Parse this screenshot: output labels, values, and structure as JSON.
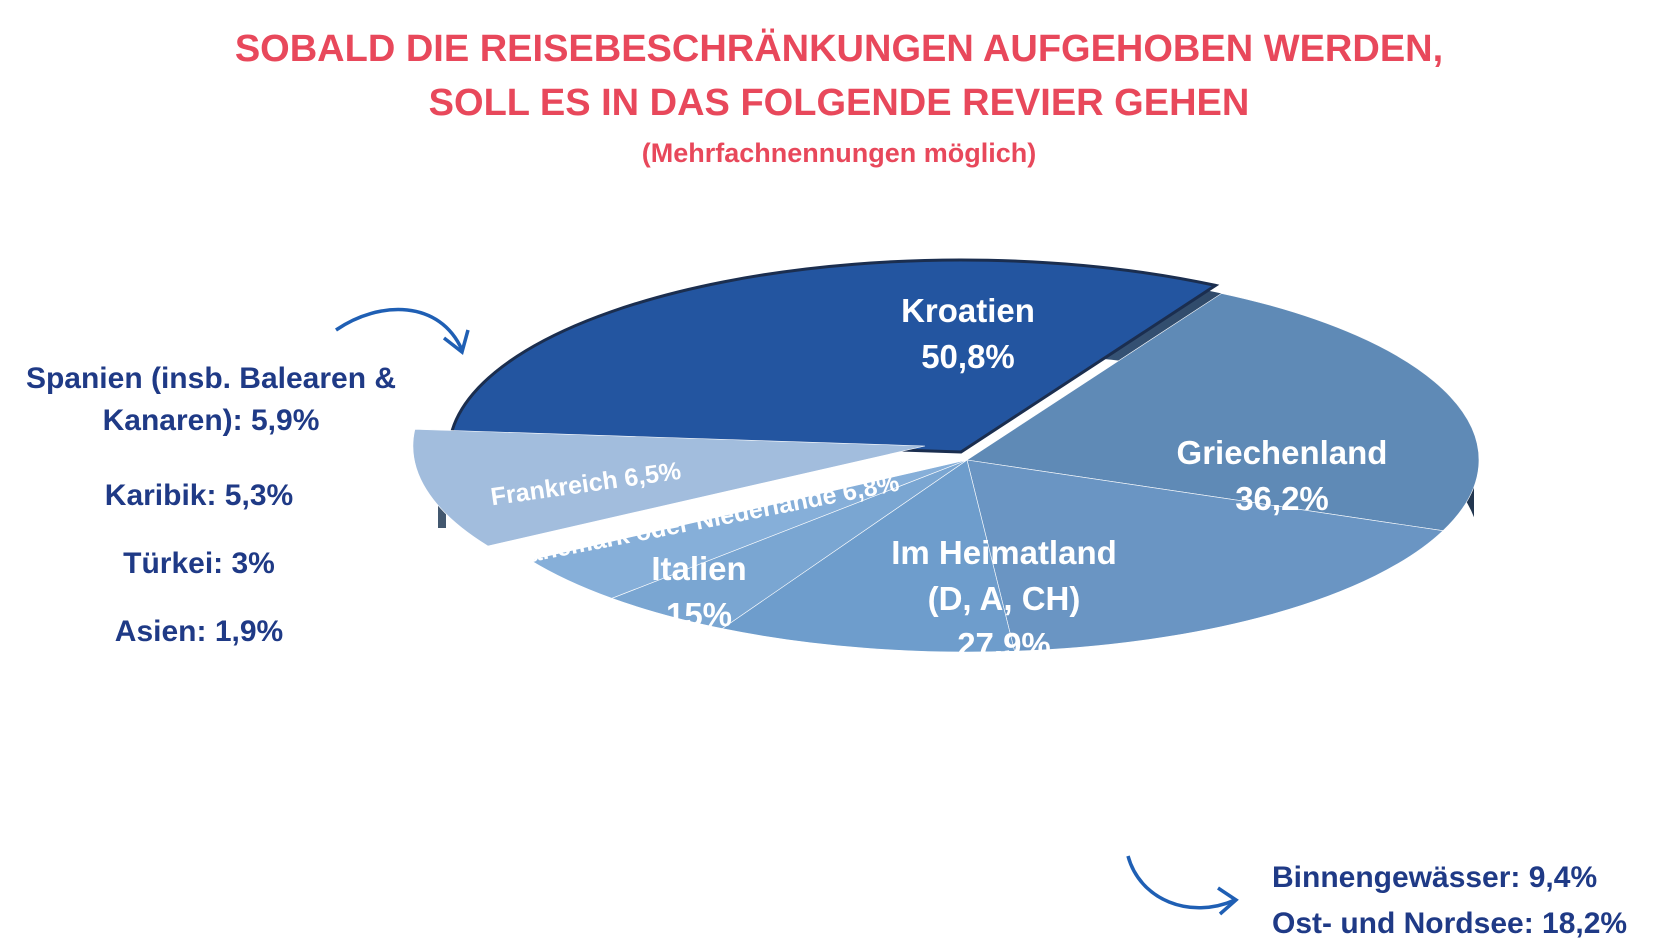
{
  "title": {
    "line1": "SOBALD DIE REISEBESCHRÄNKUNGEN AUFGEHOBEN WERDEN,",
    "line2": "SOLL ES IN DAS FOLGENDE REVIER GEHEN",
    "subtitle": "(Mehrfachnennungen möglich)"
  },
  "chart_data": {
    "type": "pie",
    "style": "3d",
    "slices": [
      {
        "key": "kroatien",
        "lines": [
          "Kroatien",
          "50,8%"
        ],
        "value": 50.8,
        "color": "#2355a0"
      },
      {
        "key": "griechenland",
        "lines": [
          "Griechenland",
          "36,2%"
        ],
        "value": 36.2,
        "color": "#5f8ab6"
      },
      {
        "key": "heimatland",
        "lines": [
          "Im Heimatland",
          "(D, A, CH)",
          "27,9%"
        ],
        "value": 27.9,
        "color": "#6a95c3"
      },
      {
        "key": "italien",
        "lines": [
          "Italien",
          "15%"
        ],
        "value": 15,
        "color": "#6e9dcc"
      },
      {
        "key": "daenemark",
        "lines": [
          "Dänemark oder Niederlande 6,8%"
        ],
        "value": 6.8,
        "color": "#7aa6d2"
      },
      {
        "key": "frankreich",
        "lines": [
          "Frankreich 6,5%"
        ],
        "value": 6.5,
        "color": "#86afd9"
      },
      {
        "key": "sonstige",
        "lines": [],
        "value": 16.1,
        "color": "#a2bddd"
      }
    ],
    "side_labels": [
      "Spanien (insb. Balearen & Kanaren): 5,9%",
      "Karibik: 5,3%",
      "Türkei: 3%",
      "Asien: 1,9%"
    ],
    "bottom_labels": [
      "Binnengewässer: 9,4%",
      "Ost- und Nordsee: 18,2%"
    ],
    "accent_color": "#1f3a86",
    "title_color": "#e8485b"
  }
}
